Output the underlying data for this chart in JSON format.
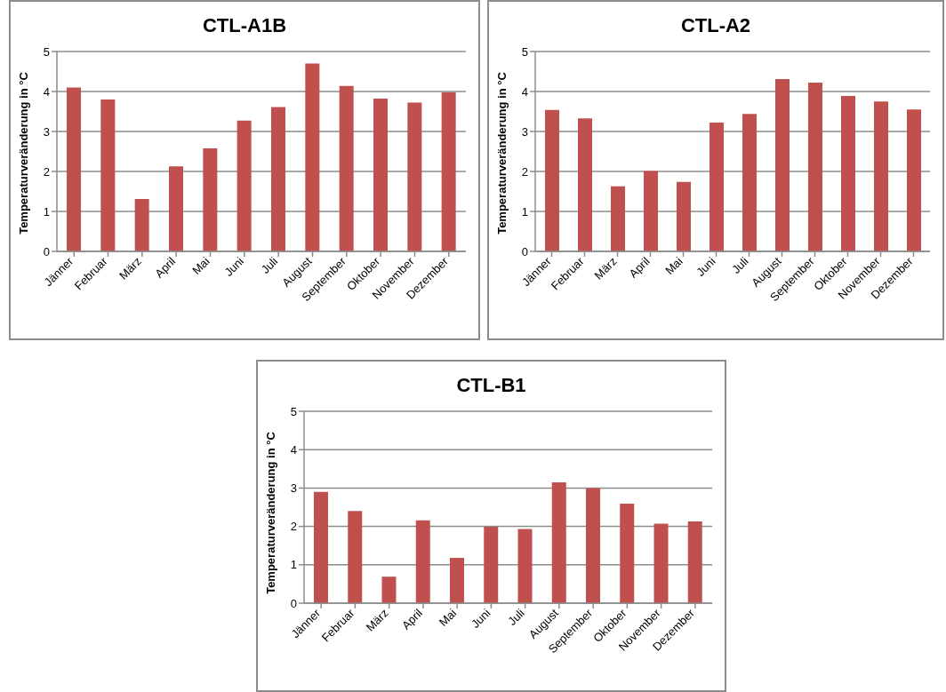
{
  "chart_data": [
    {
      "type": "bar",
      "title": "CTL-A1B",
      "ylabel": "Temperaturveränderung in °C",
      "categories": [
        "Jänner",
        "Februar",
        "März",
        "April",
        "Mai",
        "Juni",
        "Juli",
        "August",
        "September",
        "Oktober",
        "November",
        "Dezember"
      ],
      "values": [
        4.1,
        3.8,
        1.31,
        2.13,
        2.58,
        3.27,
        3.61,
        4.7,
        4.14,
        3.82,
        3.72,
        3.98
      ],
      "color": "#c0504d",
      "ylim": [
        0,
        5
      ],
      "yticks": [
        0,
        1,
        2,
        3,
        4,
        5
      ],
      "grid": "y"
    },
    {
      "type": "bar",
      "title": "CTL-A2",
      "ylabel": "Temperaturveränderung in °C",
      "categories": [
        "Jänner",
        "Februar",
        "März",
        "April",
        "Mai",
        "Juni",
        "Juli",
        "August",
        "September",
        "Oktober",
        "November",
        "Dezember"
      ],
      "values": [
        3.54,
        3.33,
        1.63,
        2.01,
        1.74,
        3.22,
        3.44,
        4.31,
        4.22,
        3.89,
        3.75,
        3.55
      ],
      "color": "#c0504d",
      "ylim": [
        0,
        5
      ],
      "yticks": [
        0,
        1,
        2,
        3,
        4,
        5
      ],
      "grid": "y"
    },
    {
      "type": "bar",
      "title": "CTL-B1",
      "ylabel": "Temperaturveränderung in °C",
      "categories": [
        "Jänner",
        "Februar",
        "März",
        "April",
        "Mai",
        "Juni",
        "Juli",
        "August",
        "September",
        "Oktober",
        "November",
        "Dezember"
      ],
      "values": [
        2.9,
        2.4,
        0.69,
        2.16,
        1.18,
        1.99,
        1.93,
        3.15,
        3.0,
        2.59,
        2.07,
        2.13
      ],
      "color": "#c0504d",
      "ylim": [
        0,
        5
      ],
      "yticks": [
        0,
        1,
        2,
        3,
        4,
        5
      ],
      "grid": "y"
    }
  ]
}
